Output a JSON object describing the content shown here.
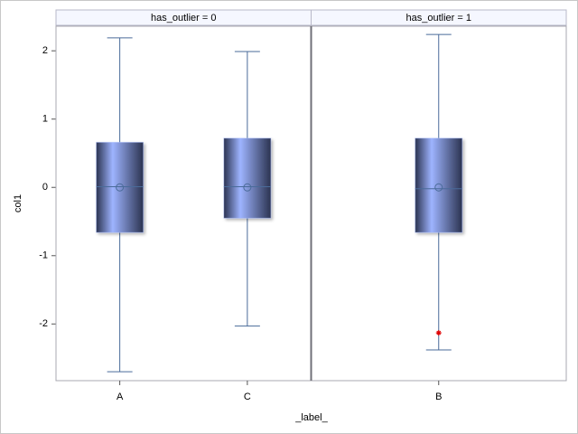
{
  "chart_data": {
    "type": "box",
    "x_label": "_label_",
    "y_label": "col1",
    "ylim": [
      -2.83,
      2.36
    ],
    "yticks": [
      -2,
      -1,
      0,
      1,
      2
    ],
    "box_color": "#9eb4ff",
    "line_color": "#4a6b9a",
    "outlier_color": "#e00000",
    "panels": [
      {
        "label": "has_outlier = 0",
        "categories": [
          "A",
          "C"
        ],
        "boxes": [
          {
            "whisker_low": -2.7,
            "q1": -0.66,
            "median": 0.01,
            "q3": 0.66,
            "whisker_high": 2.19,
            "mean": 0,
            "outliers": []
          },
          {
            "whisker_low": -2.03,
            "q1": -0.45,
            "median": 0.01,
            "q3": 0.72,
            "whisker_high": 1.99,
            "mean": 0,
            "outliers": []
          }
        ]
      },
      {
        "label": "has_outlier = 1",
        "categories": [
          "B"
        ],
        "boxes": [
          {
            "whisker_low": -2.38,
            "q1": -0.66,
            "median": -0.02,
            "q3": 0.72,
            "whisker_high": 2.24,
            "mean": 0,
            "outliers": [
              -2.13
            ]
          }
        ]
      }
    ]
  }
}
